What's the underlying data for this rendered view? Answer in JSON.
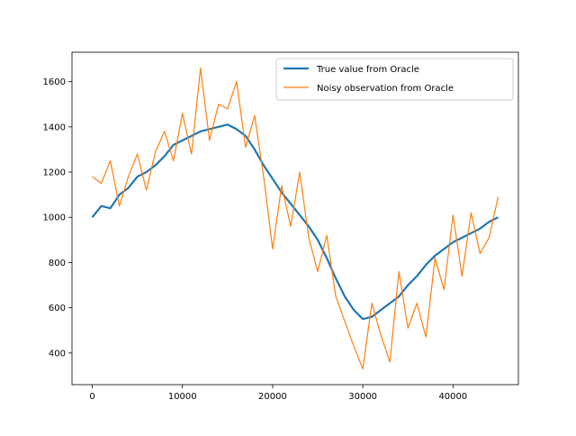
{
  "chart_data": {
    "type": "line",
    "title": "",
    "xlabel": "",
    "ylabel": "",
    "xlim": [
      -2250,
      47250
    ],
    "ylim": [
      260,
      1730
    ],
    "xticks": [
      0,
      10000,
      20000,
      30000,
      40000
    ],
    "yticks": [
      400,
      600,
      800,
      1000,
      1200,
      1400,
      1600
    ],
    "grid": false,
    "legend": "top-right",
    "series": [
      {
        "name": "True value from Oracle",
        "color": "#1f77b4",
        "x": [
          0,
          1000,
          2000,
          3000,
          4000,
          5000,
          6000,
          7000,
          8000,
          9000,
          10000,
          11000,
          12000,
          13000,
          14000,
          15000,
          16000,
          17000,
          18000,
          19000,
          20000,
          21000,
          22000,
          23000,
          24000,
          25000,
          26000,
          27000,
          28000,
          29000,
          30000,
          31000,
          32000,
          33000,
          34000,
          35000,
          36000,
          37000,
          38000,
          39000,
          40000,
          41000,
          42000,
          43000,
          44000,
          45000
        ],
        "y": [
          1000,
          1050,
          1040,
          1100,
          1130,
          1180,
          1200,
          1230,
          1270,
          1320,
          1340,
          1360,
          1380,
          1390,
          1400,
          1410,
          1390,
          1360,
          1300,
          1230,
          1170,
          1110,
          1060,
          1010,
          960,
          900,
          820,
          730,
          650,
          590,
          550,
          560,
          590,
          620,
          650,
          700,
          740,
          790,
          830,
          860,
          890,
          910,
          930,
          950,
          980,
          1000
        ]
      },
      {
        "name": "Noisy observation from Oracle",
        "color": "#ff7f0e",
        "x": [
          0,
          1000,
          2000,
          3000,
          4000,
          5000,
          6000,
          7000,
          8000,
          9000,
          10000,
          11000,
          12000,
          13000,
          14000,
          15000,
          16000,
          17000,
          18000,
          19000,
          20000,
          21000,
          22000,
          23000,
          24000,
          25000,
          26000,
          27000,
          28000,
          29000,
          30000,
          31000,
          32000,
          33000,
          34000,
          35000,
          36000,
          37000,
          38000,
          39000,
          40000,
          41000,
          42000,
          43000,
          44000,
          45000
        ],
        "y": [
          1180,
          1150,
          1250,
          1050,
          1180,
          1280,
          1120,
          1290,
          1380,
          1250,
          1460,
          1280,
          1660,
          1340,
          1500,
          1480,
          1600,
          1310,
          1450,
          1180,
          860,
          1140,
          960,
          1200,
          910,
          760,
          920,
          650,
          540,
          430,
          330,
          620,
          480,
          360,
          760,
          510,
          620,
          470,
          820,
          680,
          1010,
          740,
          1020,
          840,
          910,
          1090
        ]
      }
    ]
  }
}
